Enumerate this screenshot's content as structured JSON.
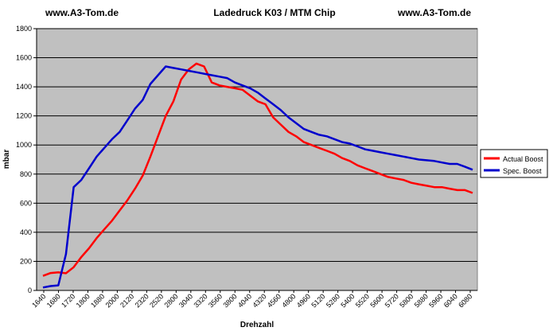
{
  "header": {
    "left": "www.A3-Tom.de",
    "center": "Ladedruck K03 / MTM Chip",
    "right": "www.A3-Tom.de"
  },
  "chart_data": {
    "type": "line",
    "title": "Ladedruck K03 / MTM Chip",
    "xlabel": "Drehzahl",
    "ylabel": "mbar",
    "ylim": [
      0,
      1800
    ],
    "yticks": [
      0,
      200,
      400,
      600,
      800,
      1000,
      1200,
      1400,
      1600,
      1800
    ],
    "grid": "horizontal",
    "legend_position": "right",
    "x_tick_labels": [
      "1640",
      "1680",
      "1720",
      "1800",
      "1880",
      "2000",
      "2120",
      "2320",
      "2520",
      "2800",
      "3040",
      "3320",
      "3560",
      "3800",
      "4040",
      "4320",
      "4560",
      "4800",
      "4960",
      "5120",
      "5280",
      "5400",
      "5520",
      "5600",
      "5720",
      "5800",
      "5880",
      "5960",
      "6040",
      "6080"
    ],
    "colors": {
      "plot_bg": "#c0c0c0",
      "actual": "#ff0000",
      "spec": "#0000cc",
      "grid": "#000000"
    },
    "series": [
      {
        "name": "Actual Boost",
        "color": "#ff0000",
        "values": [
          100,
          120,
          125,
          118,
          160,
          230,
          290,
          360,
          420,
          480,
          550,
          620,
          700,
          790,
          920,
          1060,
          1200,
          1300,
          1450,
          1520,
          1560,
          1540,
          1430,
          1410,
          1400,
          1390,
          1380,
          1340,
          1300,
          1280,
          1190,
          1140,
          1090,
          1060,
          1020,
          1000,
          980,
          960,
          940,
          910,
          890,
          860,
          840,
          820,
          800,
          780,
          770,
          760,
          740,
          730,
          720,
          710,
          710,
          700,
          690,
          690,
          670
        ]
      },
      {
        "name": "Spec. Boost",
        "color": "#0000cc",
        "values": [
          20,
          30,
          35,
          250,
          710,
          760,
          840,
          920,
          980,
          1040,
          1090,
          1170,
          1250,
          1310,
          1420,
          1480,
          1540,
          1530,
          1520,
          1510,
          1500,
          1490,
          1480,
          1470,
          1460,
          1430,
          1410,
          1390,
          1360,
          1320,
          1280,
          1240,
          1190,
          1150,
          1110,
          1090,
          1070,
          1060,
          1040,
          1020,
          1010,
          990,
          970,
          960,
          950,
          940,
          930,
          920,
          910,
          900,
          895,
          890,
          880,
          870,
          870,
          850,
          830
        ]
      }
    ]
  }
}
